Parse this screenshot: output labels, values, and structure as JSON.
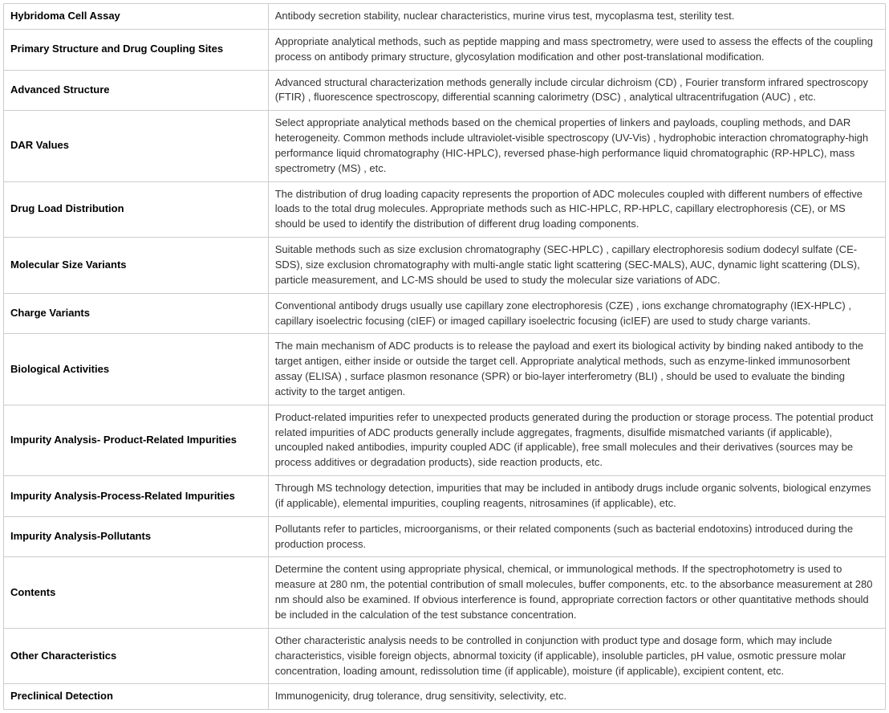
{
  "table": {
    "columns": [
      {
        "key": "label",
        "width": "30%",
        "fontWeight": "bold",
        "align": "left"
      },
      {
        "key": "desc",
        "width": "70%",
        "fontWeight": "normal",
        "align": "left"
      }
    ],
    "border_color": "#cccccc",
    "background_color": "#ffffff",
    "text_color": "#333333",
    "label_color": "#000000",
    "font_size": 13,
    "line_height": 1.45,
    "rows": [
      {
        "label": "Hybridoma Cell Assay",
        "desc": "Antibody secretion stability, nuclear characteristics, murine virus test, mycoplasma test, sterility test."
      },
      {
        "label": "Primary Structure and Drug Coupling Sites",
        "desc": "Appropriate analytical methods, such as peptide mapping and mass spectrometry, were used to assess the effects of the coupling process on antibody primary structure, glycosylation modification and other post-translational modification."
      },
      {
        "label": "Advanced Structure",
        "desc": "Advanced structural characterization methods generally include circular dichroism (CD) , Fourier transform infrared spectroscopy (FTIR) , fluorescence spectroscopy, differential scanning calorimetry (DSC) , analytical ultracentrifugation (AUC) , etc."
      },
      {
        "label": "DAR Values",
        "desc": "Select appropriate analytical methods based on the chemical properties of linkers and payloads, coupling methods, and DAR heterogeneity. Common methods include ultraviolet-visible spectroscopy (UV-Vis) , hydrophobic interaction chromatography-high performance liquid chromatography (HIC-HPLC), reversed phase-high performance liquid chromatographic (RP-HPLC), mass spectrometry (MS) , etc."
      },
      {
        "label": "Drug Load Distribution",
        "desc": "The distribution of drug loading capacity represents the proportion of ADC molecules coupled with different numbers of effective loads to the total drug molecules. Appropriate methods such as HIC-HPLC, RP-HPLC, capillary electrophoresis (CE), or MS should be used to identify the distribution of different drug loading components."
      },
      {
        "label": "Molecular Size Variants",
        "desc": "Suitable methods such as size exclusion chromatography (SEC-HPLC) , capillary electrophoresis sodium dodecyl sulfate (CE-SDS), size exclusion chromatography with multi-angle static light scattering (SEC-MALS), AUC, dynamic light scattering (DLS), particle measurement, and LC-MS should be used to study the molecular size variations of ADC."
      },
      {
        "label": "Charge Variants",
        "desc": " Conventional antibody drugs usually use capillary zone electrophoresis (CZE) , ions exchange chromatography (IEX-HPLC) , capillary isoelectric focusing (cIEF) or imaged capillary isoelectric focusing (icIEF) are used to study charge variants."
      },
      {
        "label": "Biological Activities",
        "desc": " The main mechanism of ADC products is to release the payload and exert its biological activity by binding naked antibody to the target antigen, either inside or outside the target cell. Appropriate analytical methods, such as enzyme-linked immunosorbent assay (ELISA) , surface plasmon resonance (SPR) or bio-layer interferometry (BLI) , should be used to evaluate the binding activity to the target antigen."
      },
      {
        "label": "Impurity Analysis- Product-Related Impurities",
        "desc": "Product-related impurities refer to unexpected products generated during the production or storage process. The potential product related impurities of ADC products generally include aggregates, fragments, disulfide mismatched variants (if applicable), uncoupled naked antibodies, impurity coupled ADC (if applicable), free small molecules and their derivatives (sources may be process additives or degradation products), side reaction products, etc."
      },
      {
        "label": "Impurity Analysis-Process-Related Impurities",
        "desc": "Through MS technology detection, impurities that may be included in antibody drugs include organic solvents, biological enzymes (if applicable), elemental impurities, coupling reagents, nitrosamines (if applicable), etc."
      },
      {
        "label": "Impurity Analysis-Pollutants",
        "desc": "Pollutants refer to particles, microorganisms, or their related components (such as bacterial endotoxins) introduced during the production process."
      },
      {
        "label": "Contents",
        "desc": "Determine the content using appropriate physical, chemical, or immunological methods. If the spectrophotometry is used to measure at 280 nm, the potential contribution of small molecules, buffer components, etc. to the absorbance measurement at 280 nm should also be examined. If obvious interference is found, appropriate correction factors or other quantitative methods should be included in the calculation of the test substance concentration."
      },
      {
        "label": "Other Characteristics",
        "desc": "Other characteristic analysis needs to be controlled in conjunction with product type and dosage form, which may include characteristics, visible foreign objects, abnormal toxicity (if applicable), insoluble particles, pH value, osmotic pressure molar concentration, loading amount, redissolution time (if applicable), moisture (if applicable), excipient content, etc."
      },
      {
        "label": "Preclinical Detection",
        "desc": "Immunogenicity, drug tolerance, drug sensitivity, selectivity, etc."
      }
    ]
  }
}
